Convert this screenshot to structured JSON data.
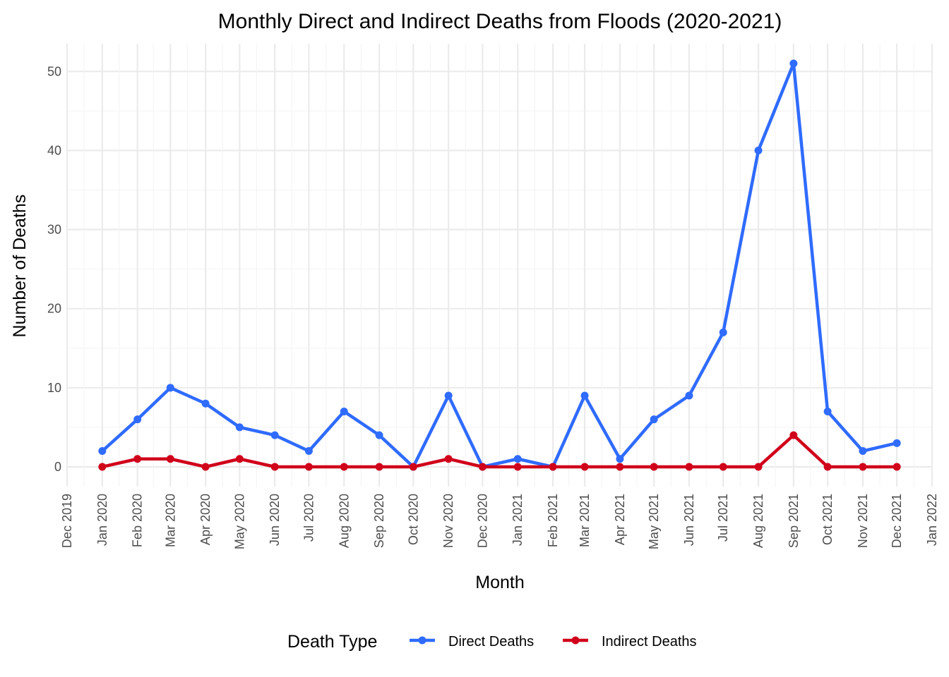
{
  "chart_data": {
    "type": "line",
    "title": "Monthly Direct and Indirect Deaths from Floods (2020-2021)",
    "xlabel": "Month",
    "ylabel": "Number of Deaths",
    "x_tick_labels": [
      "Dec 2019",
      "Jan 2020",
      "Feb 2020",
      "Mar 2020",
      "Apr 2020",
      "May 2020",
      "Jun 2020",
      "Jul 2020",
      "Aug 2020",
      "Sep 2020",
      "Oct 2020",
      "Nov 2020",
      "Dec 2020",
      "Jan 2021",
      "Feb 2021",
      "Mar 2021",
      "Apr 2021",
      "May 2021",
      "Jun 2021",
      "Jul 2021",
      "Aug 2021",
      "Sep 2021",
      "Oct 2021",
      "Nov 2021",
      "Dec 2021",
      "Jan 2022"
    ],
    "x": [
      "2020-01-01",
      "2020-02-01",
      "2020-03-01",
      "2020-04-01",
      "2020-05-01",
      "2020-06-01",
      "2020-07-01",
      "2020-08-01",
      "2020-09-01",
      "2020-10-01",
      "2020-11-01",
      "2020-12-01",
      "2021-01-01",
      "2021-02-01",
      "2021-03-01",
      "2021-04-01",
      "2021-05-01",
      "2021-06-01",
      "2021-07-01",
      "2021-08-01",
      "2021-09-01",
      "2021-10-01",
      "2021-11-01",
      "2021-12-01"
    ],
    "xlim": [
      "2019-12-01",
      "2022-01-01"
    ],
    "y_ticks": [
      0,
      10,
      20,
      30,
      40,
      50
    ],
    "ylim": [
      -2.5,
      53.5
    ],
    "grid": true,
    "legend_title": "Death Type",
    "legend_position": "bottom",
    "series": [
      {
        "name": "Direct Deaths",
        "color": "#2F6BFF",
        "values": [
          2,
          6,
          10,
          8,
          5,
          4,
          2,
          7,
          4,
          0,
          9,
          0,
          1,
          0,
          9,
          1,
          6,
          9,
          17,
          40,
          51,
          7,
          2,
          3
        ]
      },
      {
        "name": "Indirect Deaths",
        "color": "#D0021B",
        "values": [
          0,
          1,
          1,
          0,
          1,
          0,
          0,
          0,
          0,
          0,
          1,
          0,
          0,
          0,
          0,
          0,
          0,
          0,
          0,
          0,
          4,
          0,
          0,
          0
        ]
      }
    ]
  }
}
